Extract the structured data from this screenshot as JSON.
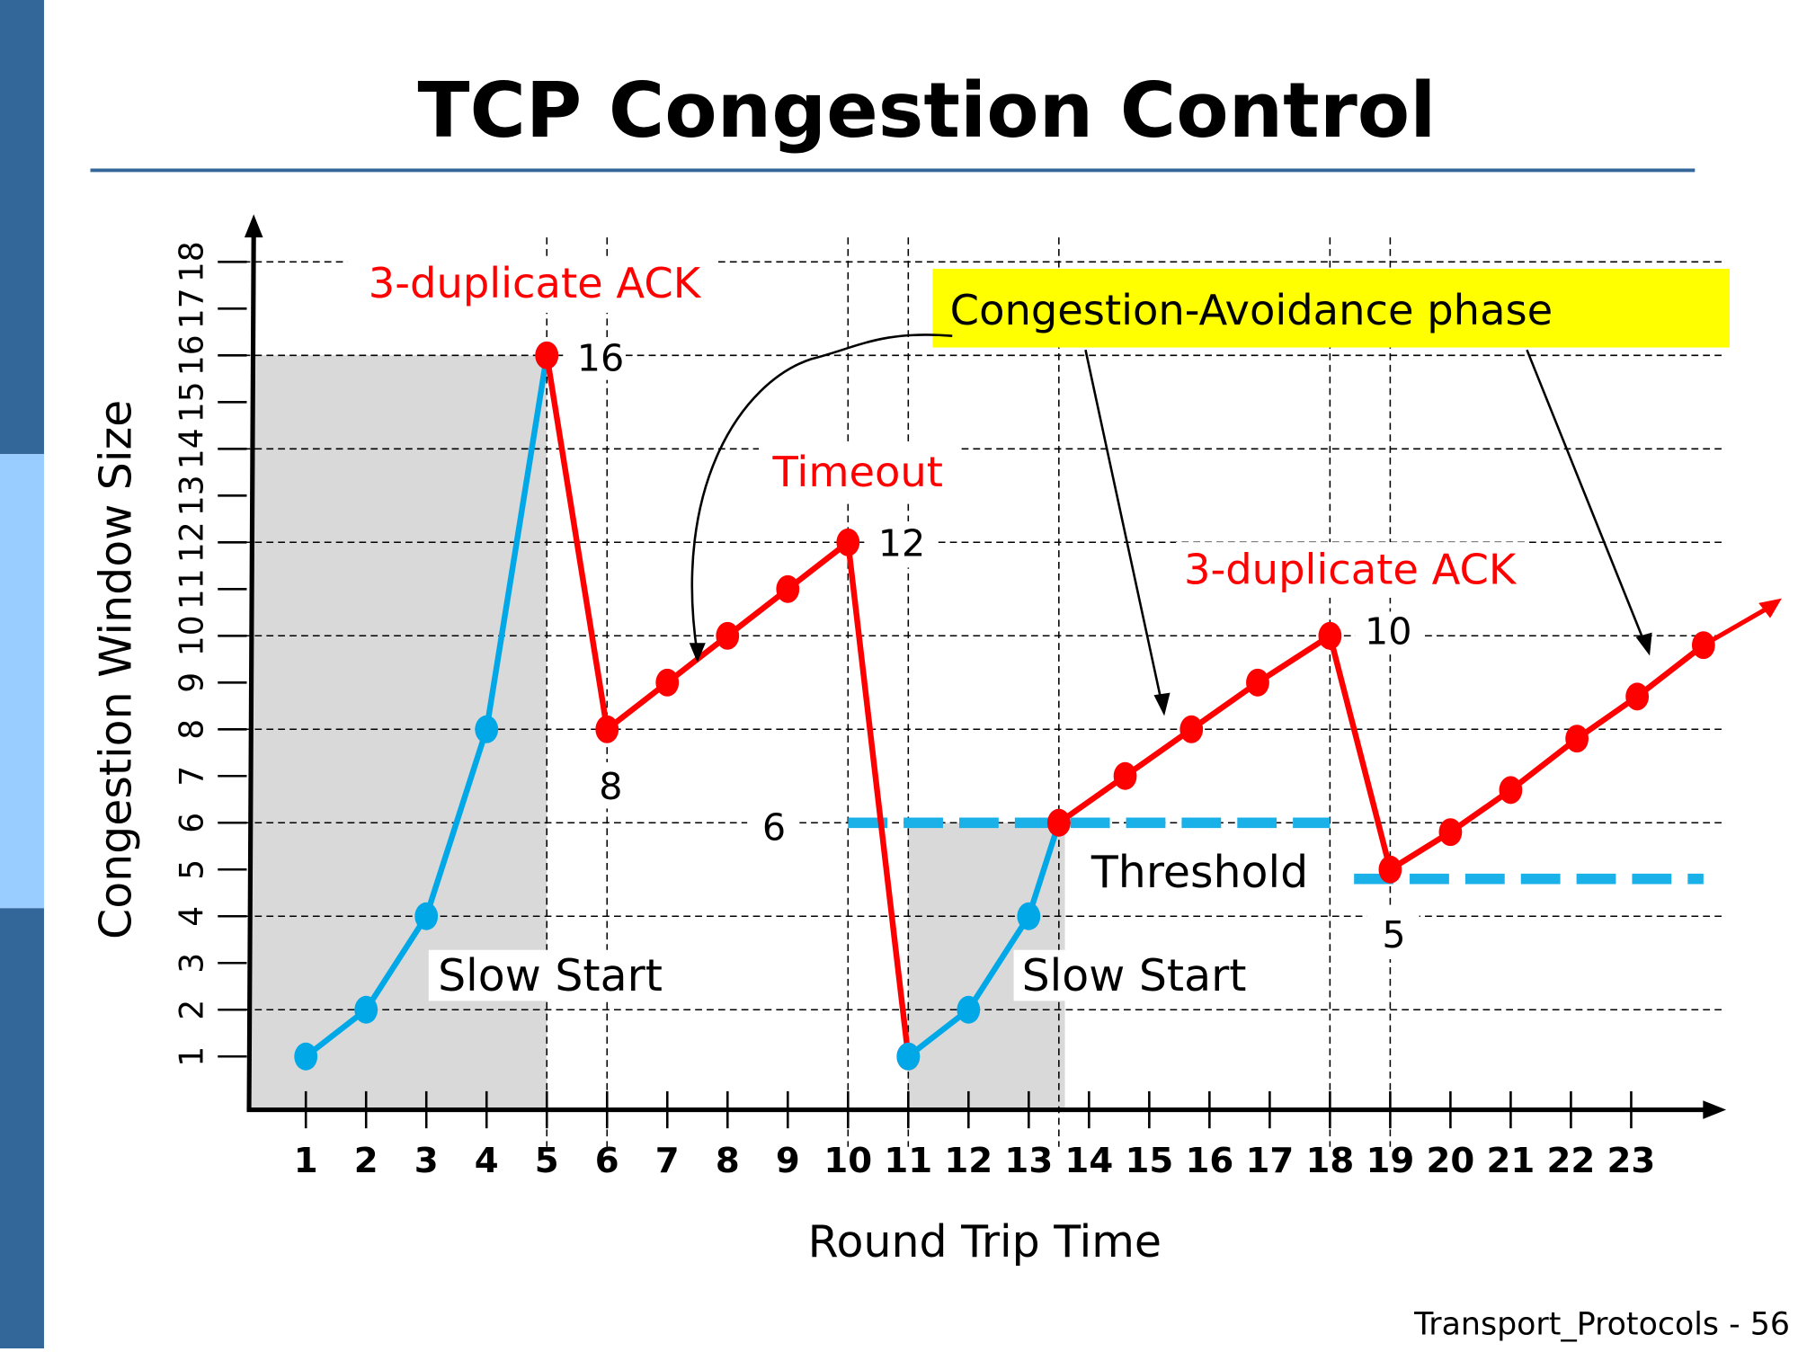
{
  "slide": {
    "title": "TCP Congestion Control",
    "footer": "Transport_Protocols - 56",
    "colors": {
      "sidebar_dark": "#336699",
      "sidebar_light": "#99ccff",
      "rule": "#336699",
      "slow_start": "#00a8e8",
      "avoidance": "#ff0000",
      "shade": "#d9d9d9",
      "callout_bg": "#ffff00"
    }
  },
  "chart_data": {
    "type": "line",
    "title": "TCP Congestion Control",
    "xlabel": "Round Trip Time",
    "ylabel": "Congestion Window Size",
    "x_ticks": [
      "1",
      "2",
      "3",
      "4",
      "5",
      "6",
      "7",
      "8",
      "9",
      "10",
      "11",
      "12",
      "13",
      "14",
      "15",
      "16",
      "17",
      "18",
      "19",
      "20",
      "21",
      "22",
      "23"
    ],
    "y_ticks": [
      "1",
      "2",
      "3",
      "4",
      "5",
      "6",
      "7",
      "8",
      "9",
      "10",
      "11",
      "12",
      "13",
      "14",
      "15",
      "16",
      "17",
      "18"
    ],
    "xlim": [
      0,
      24.5
    ],
    "ylim": [
      0,
      18
    ],
    "series": [
      {
        "name": "slow-start-1",
        "color": "#00a8e8",
        "points": [
          [
            1,
            1
          ],
          [
            2,
            2
          ],
          [
            3,
            4
          ],
          [
            4,
            8
          ],
          [
            5,
            16
          ]
        ]
      },
      {
        "name": "congestion-avoidance-1",
        "color": "#ff0000",
        "points": [
          [
            5,
            16
          ],
          [
            6,
            8
          ],
          [
            7,
            9
          ],
          [
            8,
            10
          ],
          [
            9,
            11
          ],
          [
            10,
            12
          ],
          [
            11,
            1
          ]
        ]
      },
      {
        "name": "slow-start-2",
        "color": "#00a8e8",
        "points": [
          [
            11,
            1
          ],
          [
            12,
            2
          ],
          [
            13,
            4
          ],
          [
            13.5,
            6
          ]
        ]
      },
      {
        "name": "congestion-avoidance-2",
        "color": "#ff0000",
        "points": [
          [
            13.5,
            6
          ],
          [
            14.6,
            7
          ],
          [
            15.7,
            8
          ],
          [
            16.8,
            9
          ],
          [
            18,
            10
          ],
          [
            19,
            5
          ],
          [
            20,
            5.8
          ],
          [
            21,
            6.7
          ],
          [
            22.1,
            7.8
          ],
          [
            23.1,
            8.7
          ],
          [
            24.2,
            9.8
          ]
        ],
        "arrow_end": [
          25.5,
          10.8
        ]
      }
    ],
    "thresholds": [
      {
        "value": 6,
        "from": 10,
        "to": 18
      },
      {
        "value": 4.8,
        "from": 18.4,
        "to": 24.2
      }
    ],
    "shaded_regions": [
      {
        "x_from": 0.1,
        "x_to": 5,
        "y_top": 16
      },
      {
        "x_from": 11,
        "x_to": 13.6,
        "y_top": 6
      }
    ],
    "grid_y": [
      2,
      4,
      6,
      8,
      10,
      12,
      14,
      16,
      18
    ],
    "grid_x": [
      5,
      6,
      10,
      11,
      13.5,
      18,
      19
    ],
    "annotations": {
      "dup_ack_1": "3-duplicate ACK",
      "timeout": "Timeout",
      "dup_ack_2": "3-duplicate ACK",
      "phase": "Congestion-Avoidance phase",
      "threshold": "Threshold",
      "slow_start_1": "Slow Start",
      "slow_start_2": "Slow Start",
      "v16": "16",
      "v8": "8",
      "v12": "12",
      "v6": "6",
      "v10": "10",
      "v5": "5"
    }
  }
}
